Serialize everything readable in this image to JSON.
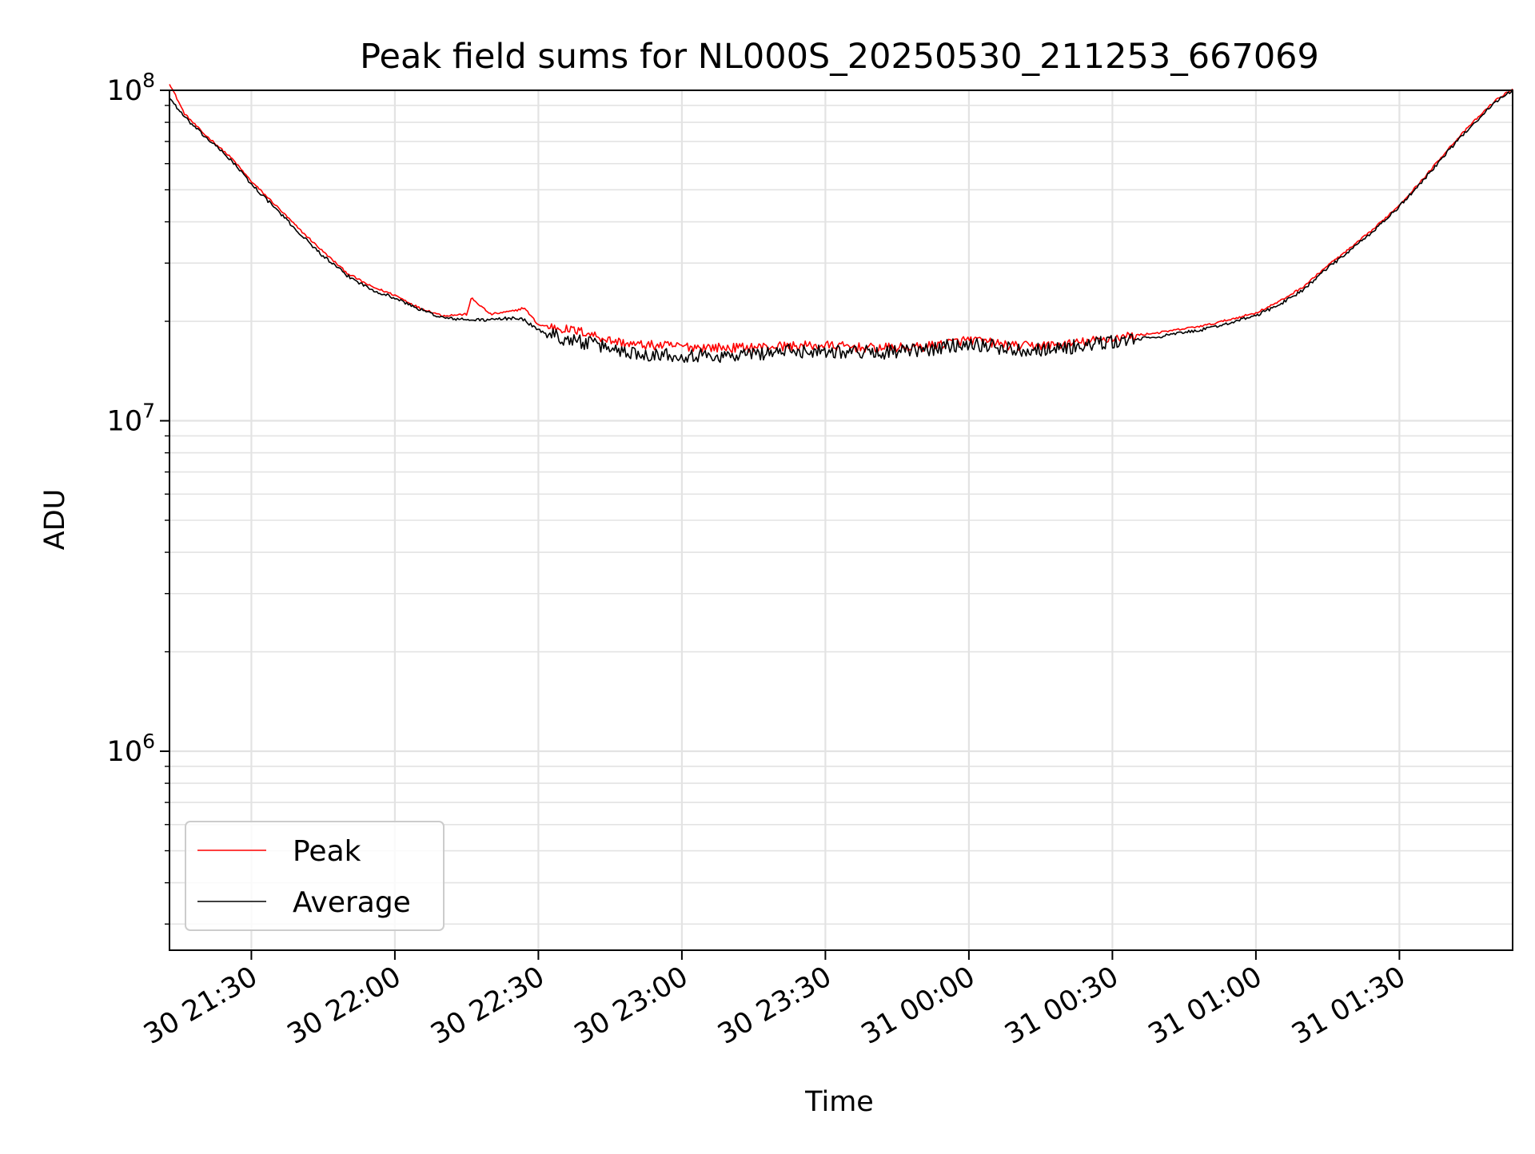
{
  "chart_data": {
    "type": "line",
    "title": "Peak field sums for NL000S_20250530_211253_667069",
    "xlabel": "Time",
    "ylabel": "ADU",
    "y_scale": "log",
    "ylim": [
      250000,
      100000000
    ],
    "xlim": [
      "2025-05-30 21:12:53",
      "2025-05-31 01:53:40"
    ],
    "grid": true,
    "legend_position": "lower-left",
    "x_ticks": [
      {
        "label": "30 21:30",
        "time": "2025-05-30 21:30"
      },
      {
        "label": "30 22:00",
        "time": "2025-05-30 22:00"
      },
      {
        "label": "30 22:30",
        "time": "2025-05-30 22:30"
      },
      {
        "label": "30 23:00",
        "time": "2025-05-30 23:00"
      },
      {
        "label": "30 23:30",
        "time": "2025-05-30 23:30"
      },
      {
        "label": "31 00:00",
        "time": "2025-05-31 00:00"
      },
      {
        "label": "31 00:30",
        "time": "2025-05-31 00:30"
      },
      {
        "label": "31 01:00",
        "time": "2025-05-31 01:00"
      },
      {
        "label": "31 01:30",
        "time": "2025-05-31 01:30"
      }
    ],
    "y_ticks": [
      {
        "base": "10",
        "exp": "6",
        "value": 1000000
      },
      {
        "base": "10",
        "exp": "7",
        "value": 10000000
      },
      {
        "base": "10",
        "exp": "8",
        "value": 100000000
      }
    ],
    "series": [
      {
        "name": "Peak",
        "color": "#ff0000",
        "points": [
          [
            "2025-05-30 21:12:53",
            105000000.0
          ],
          [
            "2025-05-30 21:16",
            85000000.0
          ],
          [
            "2025-05-30 21:20",
            74000000.0
          ],
          [
            "2025-05-30 21:22",
            70000000.0
          ],
          [
            "2025-05-30 21:26",
            62000000.0
          ],
          [
            "2025-05-30 21:30",
            53000000.0
          ],
          [
            "2025-05-30 21:35",
            45000000.0
          ],
          [
            "2025-05-30 21:40",
            38000000.0
          ],
          [
            "2025-05-30 21:45",
            32500000.0
          ],
          [
            "2025-05-30 21:50",
            28000000.0
          ],
          [
            "2025-05-30 21:55",
            25500000.0
          ],
          [
            "2025-05-30 22:00",
            24000000.0
          ],
          [
            "2025-05-30 22:05",
            22000000.0
          ],
          [
            "2025-05-30 22:10",
            20800000.0
          ],
          [
            "2025-05-30 22:15",
            21000000.0
          ],
          [
            "2025-05-30 22:16",
            23500000.0
          ],
          [
            "2025-05-30 22:20",
            21000000.0
          ],
          [
            "2025-05-30 22:25",
            21500000.0
          ],
          [
            "2025-05-30 22:27",
            22000000.0
          ],
          [
            "2025-05-30 22:30",
            19500000.0
          ],
          [
            "2025-05-30 22:35",
            19000000.0
          ],
          [
            "2025-05-30 22:40",
            18500000.0
          ],
          [
            "2025-05-30 22:45",
            17500000.0
          ],
          [
            "2025-05-30 22:50",
            17000000.0
          ],
          [
            "2025-05-30 23:00",
            16800000.0
          ],
          [
            "2025-05-30 23:10",
            16600000.0
          ],
          [
            "2025-05-30 23:20",
            16800000.0
          ],
          [
            "2025-05-30 23:30",
            16900000.0
          ],
          [
            "2025-05-30 23:40",
            16600000.0
          ],
          [
            "2025-05-30 23:50",
            16700000.0
          ],
          [
            "2025-05-31 00:00",
            17600000.0
          ],
          [
            "2025-05-31 00:10",
            16800000.0
          ],
          [
            "2025-05-31 00:20",
            17000000.0
          ],
          [
            "2025-05-31 00:30",
            17800000.0
          ],
          [
            "2025-05-31 00:40",
            18500000.0
          ],
          [
            "2025-05-31 00:50",
            19500000.0
          ],
          [
            "2025-05-31 01:00",
            21200000.0
          ],
          [
            "2025-05-31 01:05",
            23000000.0
          ],
          [
            "2025-05-31 01:10",
            25500000.0
          ],
          [
            "2025-05-31 01:15",
            29500000.0
          ],
          [
            "2025-05-31 01:20",
            33500000.0
          ],
          [
            "2025-05-31 01:25",
            38500000.0
          ],
          [
            "2025-05-31 01:30",
            45000000.0
          ],
          [
            "2025-05-31 01:35",
            54000000.0
          ],
          [
            "2025-05-31 01:40",
            66000000.0
          ],
          [
            "2025-05-31 01:45",
            79000000.0
          ],
          [
            "2025-05-31 01:50",
            93000000.0
          ],
          [
            "2025-05-31 01:53:40",
            101000000.0
          ]
        ]
      },
      {
        "name": "Average",
        "color": "#000000",
        "points": [
          [
            "2025-05-30 21:12:53",
            95000000.0
          ],
          [
            "2025-05-30 21:16",
            83000000.0
          ],
          [
            "2025-05-30 21:20",
            73000000.0
          ],
          [
            "2025-05-30 21:22",
            69000000.0
          ],
          [
            "2025-05-30 21:26",
            61000000.0
          ],
          [
            "2025-05-30 21:30",
            52000000.0
          ],
          [
            "2025-05-30 21:35",
            44000000.0
          ],
          [
            "2025-05-30 21:40",
            37000000.0
          ],
          [
            "2025-05-30 21:45",
            31500000.0
          ],
          [
            "2025-05-30 21:50",
            27500000.0
          ],
          [
            "2025-05-30 21:55",
            25000000.0
          ],
          [
            "2025-05-30 22:00",
            23500000.0
          ],
          [
            "2025-05-30 22:05",
            21800000.0
          ],
          [
            "2025-05-30 22:10",
            20500000.0
          ],
          [
            "2025-05-30 22:15",
            20200000.0
          ],
          [
            "2025-05-30 22:20",
            20200000.0
          ],
          [
            "2025-05-30 22:25",
            20500000.0
          ],
          [
            "2025-05-30 22:27",
            20200000.0
          ],
          [
            "2025-05-30 22:30",
            18800000.0
          ],
          [
            "2025-05-30 22:35",
            17800000.0
          ],
          [
            "2025-05-30 22:40",
            17200000.0
          ],
          [
            "2025-05-30 22:45",
            16600000.0
          ],
          [
            "2025-05-30 22:50",
            16000000.0
          ],
          [
            "2025-05-30 23:00",
            15800000.0
          ],
          [
            "2025-05-30 23:10",
            15700000.0
          ],
          [
            "2025-05-30 23:20",
            16200000.0
          ],
          [
            "2025-05-30 23:30",
            16300000.0
          ],
          [
            "2025-05-30 23:40",
            16100000.0
          ],
          [
            "2025-05-30 23:50",
            16300000.0
          ],
          [
            "2025-05-31 00:00",
            17200000.0
          ],
          [
            "2025-05-31 00:10",
            16400000.0
          ],
          [
            "2025-05-31 00:20",
            16600000.0
          ],
          [
            "2025-05-31 00:30",
            17300000.0
          ],
          [
            "2025-05-31 00:40",
            18000000.0
          ],
          [
            "2025-05-31 00:50",
            19000000.0
          ],
          [
            "2025-05-31 01:00",
            20800000.0
          ],
          [
            "2025-05-31 01:05",
            22500000.0
          ],
          [
            "2025-05-31 01:10",
            25000000.0
          ],
          [
            "2025-05-31 01:15",
            29000000.0
          ],
          [
            "2025-05-31 01:20",
            33000000.0
          ],
          [
            "2025-05-31 01:25",
            38000000.0
          ],
          [
            "2025-05-31 01:30",
            44500000.0
          ],
          [
            "2025-05-31 01:35",
            53500000.0
          ],
          [
            "2025-05-31 01:40",
            65000000.0
          ],
          [
            "2025-05-31 01:45",
            78000000.0
          ],
          [
            "2025-05-31 01:50",
            92000000.0
          ],
          [
            "2025-05-31 01:53:40",
            100000000.0
          ]
        ]
      }
    ]
  }
}
